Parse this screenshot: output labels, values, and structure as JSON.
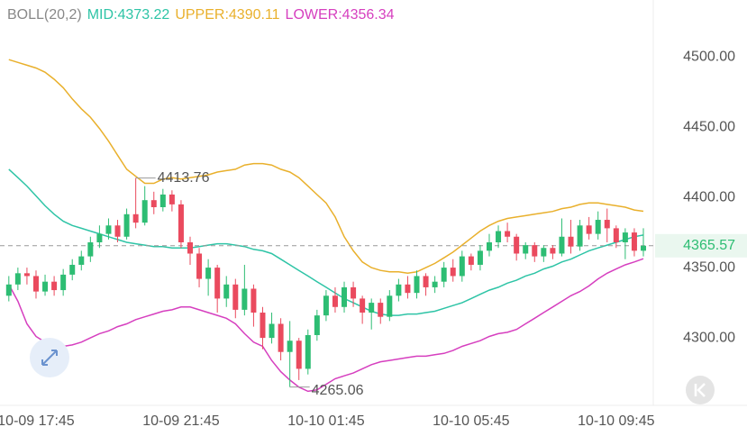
{
  "chart_data": {
    "type": "candlestick",
    "indicator": "BOLL(20,2)",
    "legend": [
      {
        "text": "MID:4373.22",
        "color": "#2ec4a6"
      },
      {
        "text": "UPPER:4390.11",
        "color": "#e9b02c"
      },
      {
        "text": "LOWER:4356.34",
        "color": "#d63fbf"
      }
    ],
    "categories": [
      null,
      null,
      null,
      "10-09 17:45",
      null,
      null,
      null,
      null,
      null,
      null,
      null,
      null,
      null,
      null,
      null,
      null,
      null,
      null,
      null,
      "10-09 21:45",
      null,
      null,
      null,
      null,
      null,
      null,
      null,
      null,
      null,
      null,
      null,
      null,
      null,
      null,
      null,
      "10-10 01:45",
      null,
      null,
      null,
      null,
      null,
      null,
      null,
      null,
      null,
      null,
      null,
      null,
      null,
      null,
      null,
      "10-10 05:45",
      null,
      null,
      null,
      null,
      null,
      null,
      null,
      null,
      null,
      null,
      null,
      null,
      null,
      null,
      null,
      "10-10 09:45",
      null,
      null,
      null
    ],
    "open": [
      4330,
      4338,
      4346,
      4344,
      4333,
      4340,
      4334,
      4345,
      4352,
      4358,
      4368,
      4374,
      4380,
      4372,
      4388,
      4382,
      4398,
      4393,
      4402,
      4395,
      4368,
      4360,
      4342,
      4350,
      4328,
      4338,
      4320,
      4335,
      4318,
      4300,
      4310,
      4290,
      4298,
      4278,
      4302,
      4316,
      4330,
      4322,
      4336,
      4328,
      4318,
      4325,
      4315,
      4330,
      4338,
      4332,
      4344,
      4336,
      4340,
      4350,
      4344,
      4358,
      4352,
      4362,
      4368,
      4376,
      4372,
      4360,
      4366,
      4358,
      4364,
      4360,
      4372,
      4365,
      4380,
      4374,
      4384,
      4378,
      4368,
      4375,
      4362
    ],
    "high": [
      4344,
      4350,
      4350,
      4348,
      4345,
      4344,
      4349,
      4356,
      4362,
      4372,
      4380,
      4385,
      4384,
      4392,
      4413.76,
      4408,
      4404,
      4406,
      4405,
      4398,
      4372,
      4364,
      4356,
      4352,
      4344,
      4342,
      4352,
      4338,
      4322,
      4318,
      4314,
      4312,
      4300,
      4306,
      4320,
      4334,
      4336,
      4340,
      4340,
      4330,
      4328,
      4328,
      4334,
      4342,
      4344,
      4348,
      4346,
      4344,
      4354,
      4356,
      4362,
      4360,
      4366,
      4374,
      4380,
      4382,
      4374,
      4368,
      4368,
      4366,
      4366,
      4385,
      4384,
      4384,
      4386,
      4390,
      4392,
      4380,
      4378,
      4378,
      4378
    ],
    "low": [
      4326,
      4334,
      4338,
      4328,
      4330,
      4330,
      4330,
      4341,
      4348,
      4354,
      4364,
      4370,
      4368,
      4370,
      4378,
      4380,
      4388,
      4390,
      4390,
      4364,
      4352,
      4336,
      4330,
      4318,
      4322,
      4314,
      4316,
      4308,
      4292,
      4296,
      4284,
      4265.06,
      4270,
      4274,
      4298,
      4312,
      4318,
      4318,
      4322,
      4310,
      4306,
      4310,
      4312,
      4326,
      4328,
      4328,
      4330,
      4332,
      4336,
      4340,
      4340,
      4348,
      4348,
      4358,
      4364,
      4368,
      4355,
      4356,
      4354,
      4354,
      4356,
      4358,
      4360,
      4362,
      4370,
      4370,
      4368,
      4364,
      4356,
      4358,
      4358
    ],
    "close": [
      4338,
      4346,
      4344,
      4333,
      4340,
      4334,
      4345,
      4352,
      4358,
      4368,
      4374,
      4380,
      4372,
      4388,
      4382,
      4398,
      4393,
      4402,
      4395,
      4368,
      4360,
      4342,
      4350,
      4328,
      4338,
      4320,
      4335,
      4318,
      4300,
      4310,
      4290,
      4298,
      4278,
      4302,
      4316,
      4330,
      4322,
      4336,
      4328,
      4318,
      4325,
      4315,
      4330,
      4338,
      4332,
      4344,
      4336,
      4340,
      4350,
      4344,
      4358,
      4352,
      4362,
      4368,
      4376,
      4372,
      4360,
      4366,
      4358,
      4364,
      4360,
      4372,
      4365,
      4380,
      4374,
      4384,
      4378,
      4368,
      4375,
      4362,
      4365.57
    ],
    "series": [
      {
        "name": "MID",
        "color": "#2ec4a6",
        "values": [
          4420,
          4414,
          4408,
          4401,
          4394,
          4388,
          4383,
          4380,
          4378,
          4376,
          4374,
          4372,
          4370,
          4368,
          4367,
          4366,
          4365,
          4365,
          4364,
          4364,
          4364,
          4365,
          4366,
          4367,
          4367,
          4366,
          4365,
          4363,
          4362,
          4360,
          4356,
          4352,
          4348,
          4344,
          4340,
          4336,
          4332,
          4328,
          4325,
          4322,
          4319,
          4317,
          4316,
          4316,
          4317,
          4317,
          4318,
          4319,
          4321,
          4323,
          4325,
          4328,
          4331,
          4334,
          4336,
          4339,
          4341,
          4344,
          4346,
          4349,
          4351,
          4354,
          4356,
          4359,
          4362,
          4364,
          4366,
          4368,
          4370,
          4372,
          4373.22
        ]
      },
      {
        "name": "UPPER",
        "color": "#e9b02c",
        "values": [
          4498,
          4496,
          4494,
          4492,
          4489,
          4484,
          4478,
          4470,
          4463,
          4457,
          4449,
          4440,
          4430,
          4420,
          4415,
          4410,
          4410,
          4413,
          4414,
          4413,
          4414,
          4415,
          4416,
          4418,
          4419,
          4420,
          4423,
          4424,
          4424,
          4423,
          4420,
          4418,
          4414,
          4408,
          4402,
          4396,
          4386,
          4372,
          4362,
          4354,
          4350,
          4348,
          4347,
          4347,
          4346,
          4347,
          4350,
          4353,
          4357,
          4361,
          4366,
          4371,
          4376,
          4380,
          4383,
          4385,
          4386,
          4387,
          4388,
          4389,
          4390,
          4392,
          4393,
          4395,
          4396,
          4396,
          4395,
          4394,
          4393,
          4391,
          4390.11
        ]
      },
      {
        "name": "LOWER",
        "color": "#d63fbf",
        "values": [
          4338,
          4326,
          4310,
          4301,
          4297,
          4294,
          4294,
          4295,
          4297,
          4300,
          4303,
          4305,
          4308,
          4310,
          4313,
          4315,
          4317,
          4319,
          4320,
          4322,
          4322,
          4320,
          4318,
          4316,
          4314,
          4310,
          4303,
          4297,
          4294,
          4284,
          4276,
          4270,
          4265,
          4262,
          4263,
          4267,
          4271,
          4273,
          4275,
          4278,
          4281,
          4283,
          4284,
          4285,
          4286,
          4287,
          4287,
          4288,
          4289,
          4291,
          4294,
          4296,
          4298,
          4301,
          4303,
          4304,
          4306,
          4310,
          4314,
          4318,
          4322,
          4326,
          4330,
          4333,
          4337,
          4342,
          4346,
          4349,
          4352,
          4354,
          4356.34
        ]
      }
    ],
    "up_color": "#2dbd73",
    "down_color": "#ea4a5e",
    "last_price": {
      "value": 4365.57,
      "label": "4365.57"
    },
    "annotations": [
      {
        "index": 14,
        "field": "high"
      },
      {
        "index": 31,
        "field": "low"
      }
    ],
    "ylim": [
      4252,
      4540.4
    ],
    "yticks": [
      {
        "value": 4300,
        "label": "4300.00"
      },
      {
        "value": 4350,
        "label": "4350.00"
      },
      {
        "value": 4400,
        "label": "4400.00"
      },
      {
        "value": 4450,
        "label": "4450.00"
      },
      {
        "value": 4500,
        "label": "4500.00"
      }
    ]
  }
}
